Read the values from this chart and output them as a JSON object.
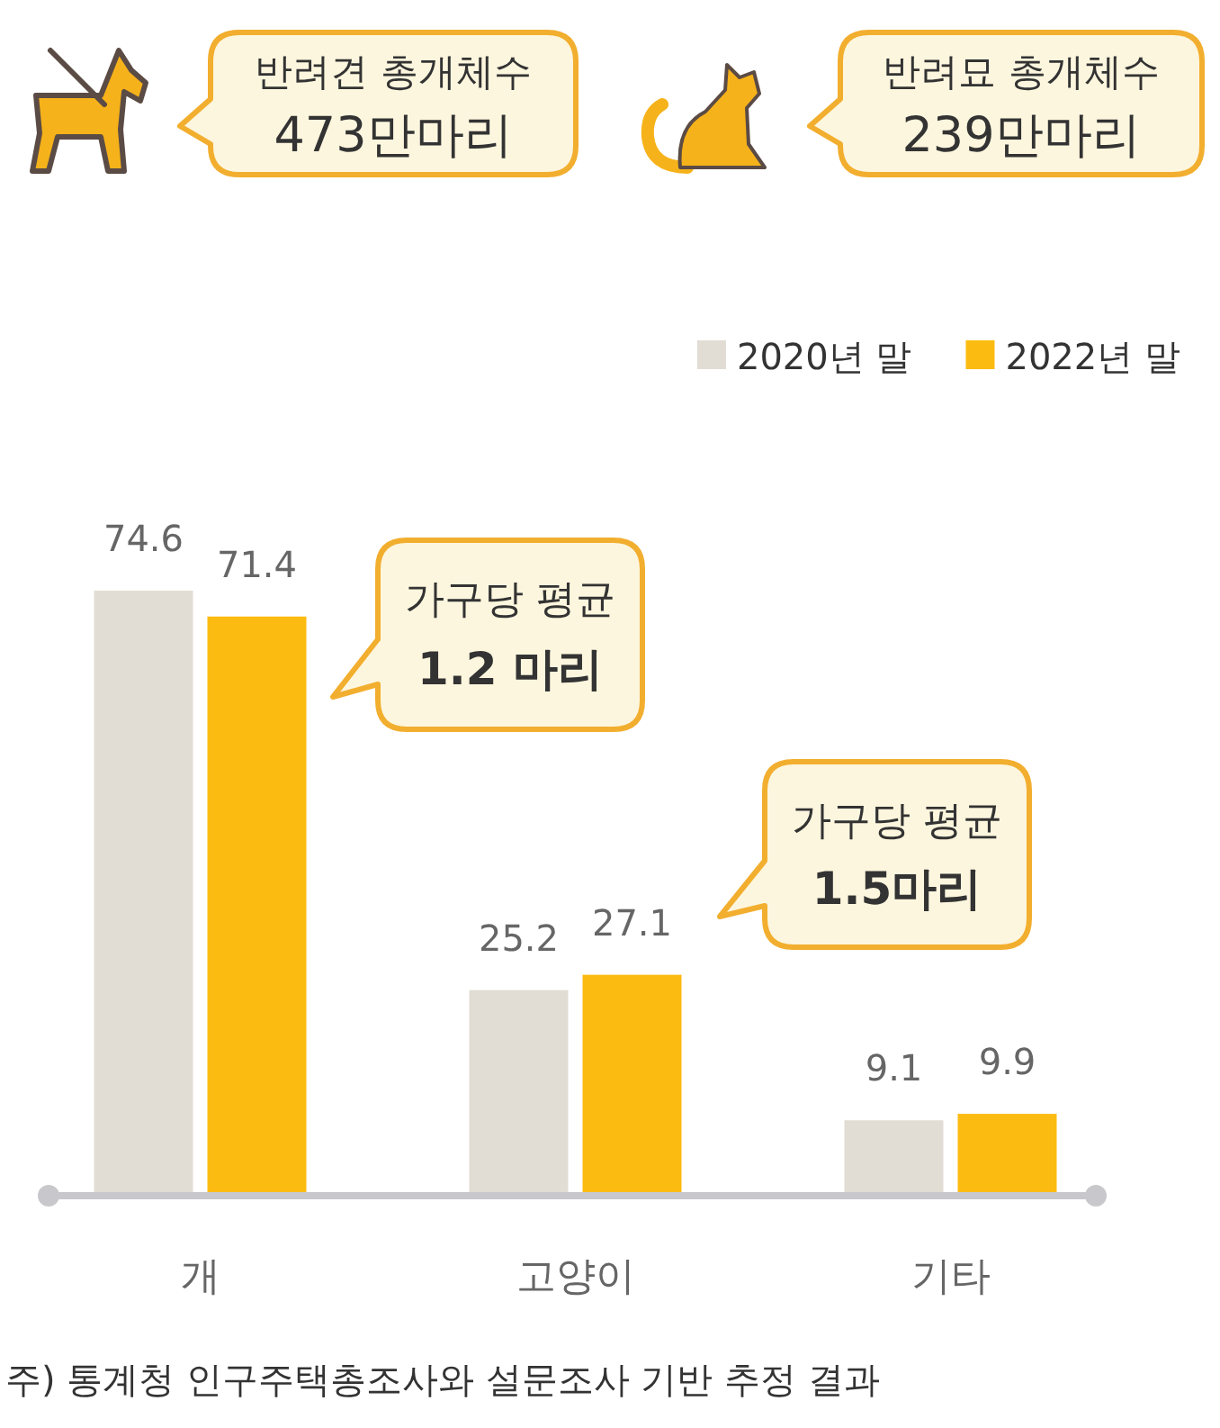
{
  "chart_data": {
    "type": "bar",
    "categories": [
      "개",
      "고양이",
      "기타"
    ],
    "series": [
      {
        "name": "2020년 말",
        "color": "#e1ddd4",
        "values": [
          74.6,
          25.2,
          9.1
        ]
      },
      {
        "name": "2022년 말",
        "color": "#fcbb11",
        "values": [
          71.4,
          27.1,
          9.9
        ]
      }
    ],
    "data_labels": true,
    "legend": "top right",
    "annotations": [
      "반려견 총개체수\n473만마리",
      "반려묘 총개체수\n239만마리",
      "가구당 평균\n1.2 마리",
      "가구당 평균\n1.5마리",
      "주) 통계청 인구주택총조사와 설문조사 기반 추정 결과"
    ]
  }
}
